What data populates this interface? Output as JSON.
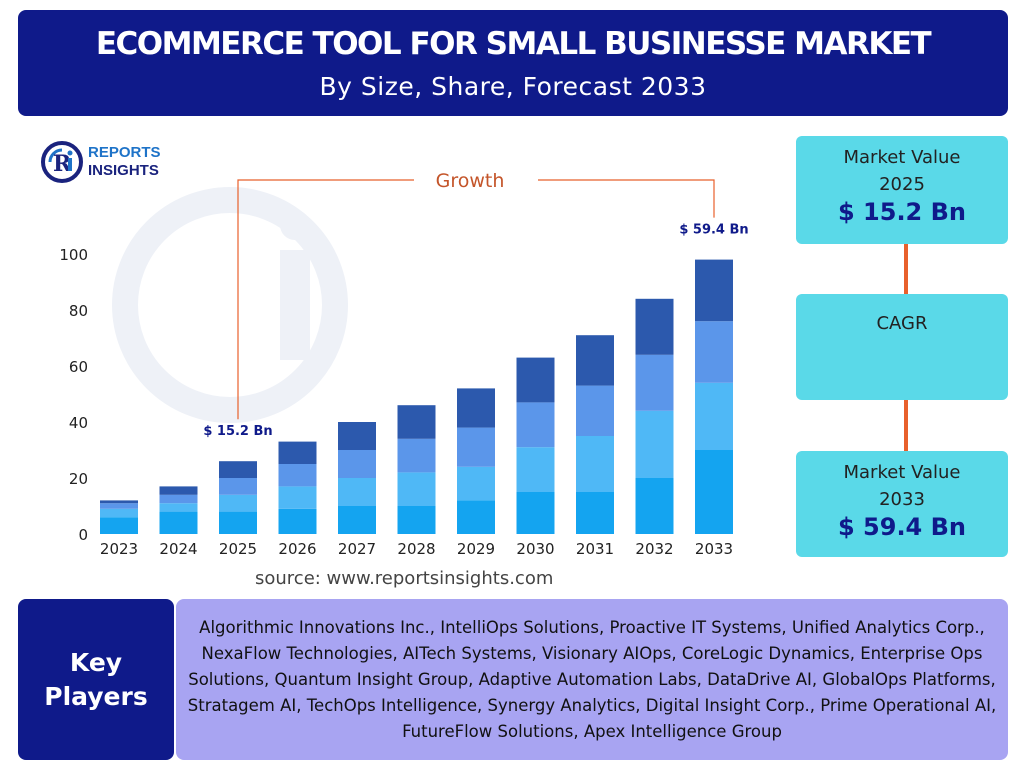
{
  "header": {
    "title": "ECOMMERCE TOOL FOR SMALL BUSINESSE MARKET",
    "subtitle": "By Size, Share, Forecast 2033"
  },
  "logo": {
    "line1": "REPORTS",
    "line2": "INSIGHTS"
  },
  "chart_data": {
    "type": "bar",
    "stacked": true,
    "categories": [
      "2023",
      "2024",
      "2025",
      "2026",
      "2027",
      "2028",
      "2029",
      "2030",
      "2031",
      "2032",
      "2033"
    ],
    "series": [
      {
        "color": "#14a4f0",
        "values": [
          6,
          8,
          8,
          9,
          10,
          10,
          12,
          15,
          15,
          20,
          30
        ]
      },
      {
        "color": "#4fb8f6",
        "values": [
          3,
          3,
          6,
          8,
          10,
          12,
          12,
          16,
          20,
          24,
          24
        ]
      },
      {
        "color": "#5b96ea",
        "values": [
          2,
          3,
          6,
          8,
          10,
          12,
          14,
          16,
          18,
          20,
          22
        ]
      },
      {
        "color": "#2c59ad",
        "values": [
          1,
          3,
          6,
          8,
          10,
          12,
          14,
          16,
          18,
          20,
          22
        ]
      }
    ],
    "ylim": [
      0,
      100
    ],
    "yticks": [
      0,
      20,
      40,
      60,
      80,
      100
    ],
    "annotations": [
      {
        "category": "2025",
        "text": "$ 15.2 Bn"
      },
      {
        "category": "2033",
        "text": "$ 59.4 Bn"
      }
    ],
    "growth_label": "Growth",
    "grid": false
  },
  "source": "source: www.reportsinsights.com",
  "cards": {
    "market_2025_label_line1": "Market Value",
    "market_2025_label_line2": "2025",
    "market_2025_value": "$ 15.2 Bn",
    "cagr_label": "CAGR",
    "market_2033_label_line1": "Market Value",
    "market_2033_label_line2": "2033",
    "market_2033_value": "$ 59.4 Bn"
  },
  "key_players": {
    "label_line1": "Key",
    "label_line2": "Players",
    "text": "Algorithmic Innovations Inc., IntelliOps Solutions, Proactive IT Systems, Unified Analytics Corp., NexaFlow Technologies, AITech Systems, Visionary AIOps, CoreLogic Dynamics, Enterprise Ops Solutions, Quantum Insight Group, Adaptive Automation Labs, DataDrive AI, GlobalOps Platforms, Stratagem AI, TechOps Intelligence, Synergy Analytics, Digital Insight Corp., Prime Operational AI, FutureFlow Solutions, Apex Intelligence Group"
  },
  "colors": {
    "header_bg": "#0f1a8a",
    "card_bg": "#5ad9e8",
    "connector": "#e8602c",
    "players_bg": "#a8a4f2"
  }
}
